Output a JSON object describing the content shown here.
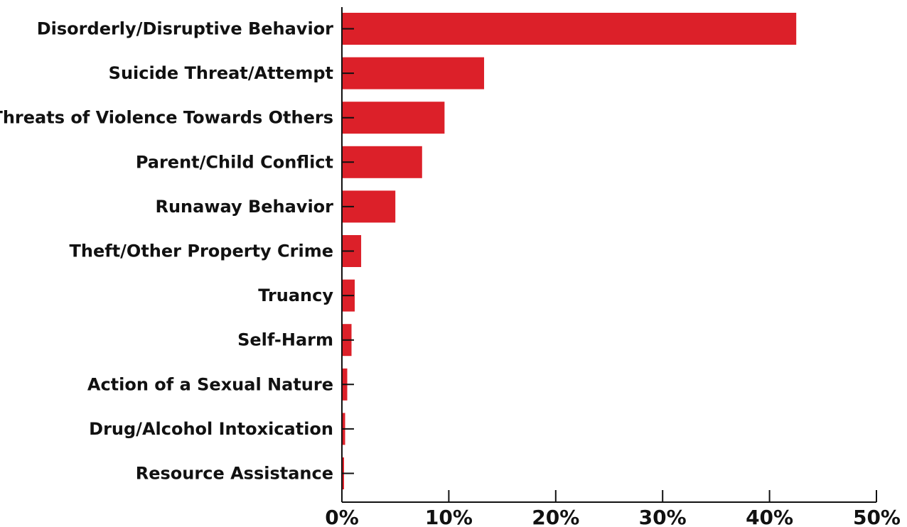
{
  "chart_data": {
    "type": "bar",
    "orientation": "horizontal",
    "categories": [
      "Disorderly/Disruptive Behavior",
      "Suicide Threat/Attempt",
      "Threats of Violence Towards Others",
      "Parent/Child Conflict",
      "Runaway Behavior",
      "Theft/Other Property Crime",
      "Truancy",
      "Self-Harm",
      "Action of a Sexual Nature",
      "Drug/Alcohol Intoxication",
      "Resource Assistance"
    ],
    "values": [
      42.5,
      13.3,
      9.6,
      7.5,
      5.0,
      1.8,
      1.2,
      0.9,
      0.5,
      0.3,
      0.2
    ],
    "title": "",
    "xlabel": "",
    "ylabel": "",
    "xlim": [
      0,
      50
    ],
    "xticks": [
      0,
      10,
      20,
      30,
      40,
      50
    ],
    "xtick_labels": [
      "0%",
      "10%",
      "20%",
      "30%",
      "40%",
      "50%"
    ],
    "bar_color": "#dc2029",
    "grid": false,
    "legend": "none"
  }
}
